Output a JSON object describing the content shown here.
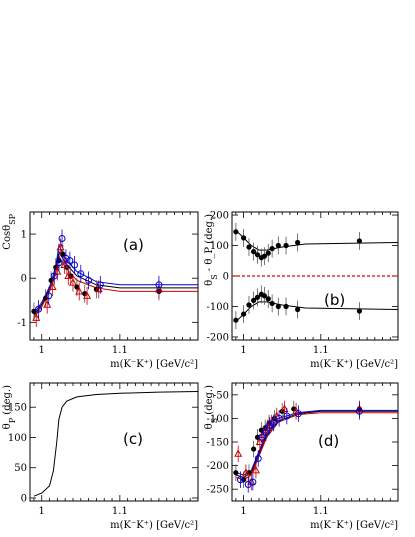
{
  "chart_data": [
    {
      "id": "a",
      "type": "scatter",
      "panel_label": "(a)",
      "ylabel": "Cosθ_SP",
      "xlabel": "m(K⁻K⁺) [GeV/c²]",
      "xlim": [
        0.985,
        1.2
      ],
      "ylim": [
        -1.4,
        1.5
      ],
      "yticks": [
        {
          "v": -1,
          "t": "-1"
        },
        {
          "v": 0,
          "t": "0"
        },
        {
          "v": 1,
          "t": "1"
        }
      ],
      "xticks": [
        {
          "v": 1.0,
          "t": "1"
        },
        {
          "v": 1.1,
          "t": "1.1"
        }
      ],
      "fit_lines": [
        {
          "color": "#000000",
          "points": [
            [
              0.99,
              -0.85
            ],
            [
              1.0,
              -0.6
            ],
            [
              1.01,
              -0.25
            ],
            [
              1.018,
              0.15
            ],
            [
              1.022,
              0.6
            ],
            [
              1.03,
              0.35
            ],
            [
              1.045,
              0.05
            ],
            [
              1.07,
              -0.15
            ],
            [
              1.1,
              -0.22
            ],
            [
              1.2,
              -0.22
            ]
          ]
        },
        {
          "color": "#cc0000",
          "points": [
            [
              0.99,
              -0.9
            ],
            [
              1.0,
              -0.65
            ],
            [
              1.01,
              -0.3
            ],
            [
              1.018,
              0.1
            ],
            [
              1.022,
              0.5
            ],
            [
              1.03,
              0.25
            ],
            [
              1.045,
              -0.05
            ],
            [
              1.07,
              -0.22
            ],
            [
              1.1,
              -0.3
            ],
            [
              1.2,
              -0.3
            ]
          ]
        },
        {
          "color": "#0000cc",
          "points": [
            [
              0.99,
              -0.8
            ],
            [
              1.0,
              -0.55
            ],
            [
              1.01,
              -0.2
            ],
            [
              1.018,
              0.25
            ],
            [
              1.022,
              0.75
            ],
            [
              1.03,
              0.45
            ],
            [
              1.045,
              0.15
            ],
            [
              1.07,
              -0.08
            ],
            [
              1.1,
              -0.15
            ],
            [
              1.2,
              -0.15
            ]
          ]
        }
      ],
      "series": [
        {
          "marker": "filled-circle",
          "color": "#000000",
          "x": [
            0.99,
            1.005,
            1.012,
            1.018,
            1.022,
            1.027,
            1.032,
            1.037,
            1.045,
            1.055,
            1.07,
            1.15
          ],
          "y": [
            -0.75,
            -0.45,
            -0.05,
            0.25,
            0.4,
            0.55,
            0.25,
            0.05,
            -0.2,
            -0.35,
            -0.25,
            -0.3
          ]
        },
        {
          "marker": "open-triangle",
          "color": "#cc0000",
          "x": [
            0.993,
            1.007,
            1.014,
            1.02,
            1.024,
            1.029,
            1.034,
            1.04,
            1.048,
            1.058,
            1.073,
            1.15
          ],
          "y": [
            -0.9,
            -0.6,
            -0.2,
            0.15,
            0.7,
            0.3,
            0.05,
            -0.1,
            -0.3,
            -0.4,
            -0.25,
            -0.25
          ]
        },
        {
          "marker": "open-circle",
          "color": "#0000cc",
          "x": [
            0.996,
            1.009,
            1.016,
            1.022,
            1.026,
            1.031,
            1.036,
            1.042,
            1.05,
            1.06,
            1.075,
            1.15
          ],
          "y": [
            -0.7,
            -0.4,
            0.05,
            0.35,
            0.9,
            0.45,
            0.4,
            0.3,
            0.1,
            -0.05,
            -0.15,
            -0.15
          ]
        }
      ]
    },
    {
      "id": "b",
      "type": "scatter",
      "panel_label": "(b)",
      "ylabel": "θ_S - θ_P (deg.)",
      "xlabel": "m(K⁻K⁺) [GeV/c²]",
      "xlim": [
        0.985,
        1.2
      ],
      "ylim": [
        -210,
        210
      ],
      "yticks": [
        {
          "v": -200,
          "t": "-200"
        },
        {
          "v": -100,
          "t": "-100"
        },
        {
          "v": 0,
          "t": "0"
        },
        {
          "v": 100,
          "t": "100"
        },
        {
          "v": 200,
          "t": "200"
        }
      ],
      "xticks": [
        {
          "v": 1.0,
          "t": "1"
        },
        {
          "v": 1.1,
          "t": "1.1"
        }
      ],
      "hline": {
        "y": 0,
        "color": "#ee0000"
      },
      "fit_lines": [
        {
          "color": "#000000",
          "points": [
            [
              0.99,
              150
            ],
            [
              1.0,
              125
            ],
            [
              1.01,
              100
            ],
            [
              1.02,
              85
            ],
            [
              1.03,
              85
            ],
            [
              1.05,
              95
            ],
            [
              1.08,
              105
            ],
            [
              1.2,
              110
            ]
          ]
        },
        {
          "color": "#000000",
          "points": [
            [
              0.99,
              -150
            ],
            [
              1.0,
              -125
            ],
            [
              1.01,
              -100
            ],
            [
              1.02,
              -85
            ],
            [
              1.03,
              -85
            ],
            [
              1.05,
              -95
            ],
            [
              1.08,
              -105
            ],
            [
              1.2,
              -110
            ]
          ]
        }
      ],
      "series": [
        {
          "marker": "filled-circle",
          "color": "#000000",
          "x": [
            0.99,
            1.0,
            1.007,
            1.013,
            1.018,
            1.023,
            1.027,
            1.032,
            1.037,
            1.045,
            1.055,
            1.07,
            1.15
          ],
          "y": [
            145,
            125,
            95,
            80,
            70,
            60,
            65,
            75,
            90,
            100,
            100,
            110,
            115
          ]
        },
        {
          "marker": "filled-circle",
          "color": "#000000",
          "x": [
            0.99,
            1.0,
            1.007,
            1.013,
            1.018,
            1.023,
            1.027,
            1.032,
            1.037,
            1.045,
            1.055,
            1.07,
            1.15
          ],
          "y": [
            -145,
            -125,
            -95,
            -80,
            -70,
            -60,
            -65,
            -75,
            -90,
            -100,
            -100,
            -110,
            -115
          ]
        }
      ]
    },
    {
      "id": "c",
      "type": "line",
      "panel_label": "(c)",
      "ylabel": "θ_P (deg.)",
      "xlabel": "m(K⁻K⁺) [GeV/c²]",
      "xlim": [
        0.985,
        1.2
      ],
      "ylim": [
        -5,
        190
      ],
      "yticks": [
        {
          "v": 0,
          "t": "0"
        },
        {
          "v": 50,
          "t": "50"
        },
        {
          "v": 100,
          "t": "100"
        },
        {
          "v": 150,
          "t": "150"
        }
      ],
      "xticks": [
        {
          "v": 1.0,
          "t": "1"
        },
        {
          "v": 1.1,
          "t": "1.1"
        }
      ],
      "fit_lines": [
        {
          "color": "#000000",
          "points": [
            [
              0.99,
              3
            ],
            [
              1.0,
              8
            ],
            [
              1.01,
              20
            ],
            [
              1.015,
              45
            ],
            [
              1.019,
              90
            ],
            [
              1.022,
              130
            ],
            [
              1.026,
              150
            ],
            [
              1.032,
              160
            ],
            [
              1.045,
              167
            ],
            [
              1.07,
              171
            ],
            [
              1.1,
              173
            ],
            [
              1.15,
              175
            ],
            [
              1.2,
              176
            ]
          ]
        }
      ],
      "series": []
    },
    {
      "id": "d",
      "type": "scatter",
      "panel_label": "(d)",
      "ylabel": "θ_S (deg.)",
      "xlabel": "m(K⁻K⁺) [GeV/c²]",
      "xlim": [
        0.985,
        1.2
      ],
      "ylim": [
        -275,
        -25
      ],
      "yticks": [
        {
          "v": -50,
          "t": "-50"
        },
        {
          "v": -100,
          "t": "-100"
        },
        {
          "v": -150,
          "t": "-150"
        },
        {
          "v": -200,
          "t": "-200"
        },
        {
          "v": -250,
          "t": "-250"
        }
      ],
      "xticks": [
        {
          "v": 1.0,
          "t": "1"
        },
        {
          "v": 1.1,
          "t": "1.1"
        }
      ],
      "fit_lines": [
        {
          "color": "#000000",
          "points": [
            [
              0.99,
              -220
            ],
            [
              1.0,
              -225
            ],
            [
              1.01,
              -215
            ],
            [
              1.02,
              -175
            ],
            [
              1.03,
              -135
            ],
            [
              1.045,
              -105
            ],
            [
              1.07,
              -90
            ],
            [
              1.1,
              -85
            ],
            [
              1.2,
              -85
            ]
          ]
        },
        {
          "color": "#cc0000",
          "points": [
            [
              0.99,
              -225
            ],
            [
              1.0,
              -230
            ],
            [
              1.01,
              -220
            ],
            [
              1.02,
              -180
            ],
            [
              1.03,
              -140
            ],
            [
              1.045,
              -108
            ],
            [
              1.07,
              -92
            ],
            [
              1.1,
              -88
            ],
            [
              1.2,
              -88
            ]
          ]
        },
        {
          "color": "#0000cc",
          "points": [
            [
              0.99,
              -215
            ],
            [
              1.0,
              -220
            ],
            [
              1.01,
              -210
            ],
            [
              1.02,
              -170
            ],
            [
              1.03,
              -130
            ],
            [
              1.045,
              -100
            ],
            [
              1.07,
              -88
            ],
            [
              1.1,
              -83
            ],
            [
              1.2,
              -83
            ]
          ]
        }
      ],
      "series": [
        {
          "marker": "filled-circle",
          "color": "#000000",
          "x": [
            0.99,
            1.0,
            1.007,
            1.013,
            1.018,
            1.023,
            1.028,
            1.033,
            1.04,
            1.05,
            1.065,
            1.15
          ],
          "y": [
            -215,
            -230,
            -215,
            -165,
            -140,
            -125,
            -120,
            -110,
            -100,
            -85,
            -80,
            -80
          ]
        },
        {
          "marker": "open-triangle",
          "color": "#cc0000",
          "x": [
            0.993,
            1.003,
            1.01,
            1.016,
            1.021,
            1.026,
            1.031,
            1.036,
            1.043,
            1.053,
            1.068,
            1.15
          ],
          "y": [
            -175,
            -215,
            -235,
            -210,
            -150,
            -135,
            -120,
            -110,
            -95,
            -80,
            -85,
            -80
          ]
        },
        {
          "marker": "open-circle",
          "color": "#0000cc",
          "x": [
            0.996,
            1.006,
            1.012,
            1.019,
            1.024,
            1.029,
            1.034,
            1.039,
            1.046,
            1.056,
            1.071,
            1.15
          ],
          "y": [
            -230,
            -240,
            -235,
            -185,
            -140,
            -130,
            -115,
            -110,
            -100,
            -95,
            -90,
            -85
          ]
        }
      ]
    }
  ]
}
